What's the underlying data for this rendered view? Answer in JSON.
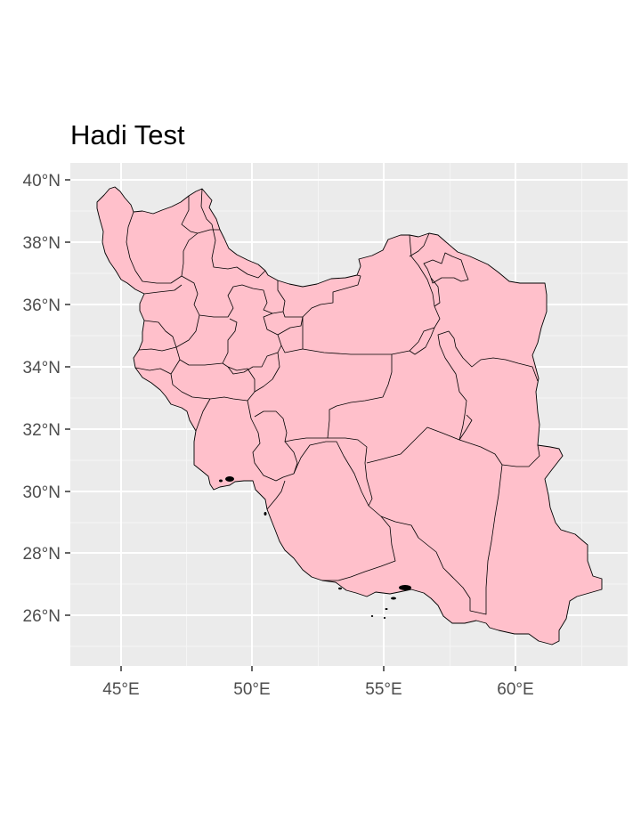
{
  "title": "Hadi Test",
  "colors": {
    "panel_background": "#ebebeb",
    "fill": "#ffc0cb",
    "outline": "#000000",
    "grid": "#ffffff",
    "tick_text": "#4d4d4d"
  },
  "axes": {
    "x_ticks": [
      {
        "lon": 45,
        "label": "45°E"
      },
      {
        "lon": 50,
        "label": "50°E"
      },
      {
        "lon": 55,
        "label": "55°E"
      },
      {
        "lon": 60,
        "label": "60°E"
      }
    ],
    "y_ticks": [
      {
        "lat": 40,
        "label": "40°N"
      },
      {
        "lat": 38,
        "label": "38°N"
      },
      {
        "lat": 36,
        "label": "36°N"
      },
      {
        "lat": 34,
        "label": "34°N"
      },
      {
        "lat": 32,
        "label": "32°N"
      },
      {
        "lat": 30,
        "label": "30°N"
      },
      {
        "lat": 28,
        "label": "28°N"
      },
      {
        "lat": 26,
        "label": "26°N"
      }
    ],
    "lon_range": [
      43.1,
      64.2
    ],
    "lat_range": [
      24.3,
      40.5
    ],
    "grid": true
  },
  "map": {
    "region": "Iran",
    "features": "provinces",
    "fill_color": "#ffc0cb"
  }
}
